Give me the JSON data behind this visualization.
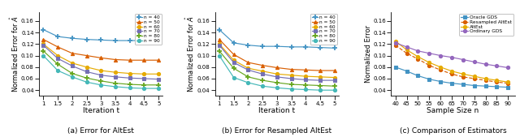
{
  "subplot1": {
    "xlabel": "Iteration t",
    "ylabel": "Normalized Error for $\\hat{A}$",
    "x": [
      1,
      1.5,
      2,
      2.5,
      3,
      3.5,
      4,
      4.5,
      5
    ],
    "series": {
      "n = 40": {
        "color": "#4393c3",
        "marker": "+",
        "values": [
          0.145,
          0.133,
          0.13,
          0.128,
          0.127,
          0.126,
          0.126,
          0.126,
          0.127
        ]
      },
      "n = 50": {
        "color": "#d95f02",
        "marker": "^",
        "values": [
          0.128,
          0.115,
          0.104,
          0.1,
          0.096,
          0.093,
          0.092,
          0.092,
          0.092
        ]
      },
      "n = 60": {
        "color": "#e6ab02",
        "marker": "o",
        "values": [
          0.12,
          0.1,
          0.087,
          0.08,
          0.074,
          0.071,
          0.069,
          0.068,
          0.068
        ]
      },
      "n = 70": {
        "color": "#7570b3",
        "marker": "s",
        "values": [
          0.118,
          0.095,
          0.082,
          0.072,
          0.066,
          0.063,
          0.061,
          0.06,
          0.059
        ]
      },
      "n = 80": {
        "color": "#66a61e",
        "marker": "+",
        "values": [
          0.108,
          0.085,
          0.069,
          0.061,
          0.056,
          0.052,
          0.05,
          0.049,
          0.049
        ]
      },
      "n = 90": {
        "color": "#45b8b8",
        "marker": "o",
        "values": [
          0.1,
          0.074,
          0.063,
          0.054,
          0.049,
          0.046,
          0.044,
          0.043,
          0.043
        ]
      }
    },
    "ylim": [
      0.03,
      0.175
    ],
    "yticks": [
      0.04,
      0.06,
      0.08,
      0.1,
      0.12,
      0.14,
      0.16
    ],
    "caption": "(a) Error for AltEst"
  },
  "subplot2": {
    "xlabel": "Iteration t",
    "ylabel": "Normalized Error for $\\hat{A}$",
    "x": [
      1,
      1.5,
      2,
      2.5,
      3,
      3.5,
      4,
      4.5,
      5
    ],
    "series": {
      "n = 40": {
        "color": "#4393c3",
        "marker": "+",
        "values": [
          0.145,
          0.122,
          0.118,
          0.116,
          0.116,
          0.115,
          0.115,
          0.114,
          0.113
        ]
      },
      "n = 50": {
        "color": "#d95f02",
        "marker": "^",
        "values": [
          0.128,
          0.102,
          0.088,
          0.083,
          0.079,
          0.076,
          0.075,
          0.074,
          0.074
        ]
      },
      "n = 60": {
        "color": "#e6ab02",
        "marker": "o",
        "values": [
          0.12,
          0.092,
          0.078,
          0.073,
          0.068,
          0.066,
          0.064,
          0.063,
          0.062
        ]
      },
      "n = 70": {
        "color": "#7570b3",
        "marker": "s",
        "values": [
          0.118,
          0.088,
          0.075,
          0.068,
          0.063,
          0.06,
          0.058,
          0.057,
          0.057
        ]
      },
      "n = 80": {
        "color": "#66a61e",
        "marker": "+",
        "values": [
          0.108,
          0.078,
          0.063,
          0.057,
          0.053,
          0.05,
          0.049,
          0.048,
          0.047
        ]
      },
      "n = 90": {
        "color": "#45b8b8",
        "marker": "o",
        "values": [
          0.1,
          0.062,
          0.053,
          0.047,
          0.044,
          0.042,
          0.041,
          0.04,
          0.04
        ]
      }
    },
    "ylim": [
      0.03,
      0.175
    ],
    "yticks": [
      0.04,
      0.06,
      0.08,
      0.1,
      0.12,
      0.14,
      0.16
    ],
    "caption": "(b) Error for Resampled AltEst"
  },
  "subplot3": {
    "xlabel": "Sample Size n",
    "ylabel": "Normalized Error",
    "x": [
      40,
      45,
      50,
      55,
      60,
      65,
      70,
      75,
      80,
      85,
      90
    ],
    "series": {
      "Oracle GDS": {
        "color": "#4393c3",
        "marker": "s",
        "linestyle": "-",
        "values": [
          0.08,
          0.073,
          0.065,
          0.059,
          0.055,
          0.052,
          0.05,
          0.048,
          0.047,
          0.046,
          0.045
        ]
      },
      "Resampled AltEst": {
        "color": "#d95f02",
        "marker": "o",
        "linestyle": "--",
        "values": [
          0.118,
          0.104,
          0.094,
          0.083,
          0.075,
          0.068,
          0.063,
          0.06,
          0.057,
          0.054,
          0.052
        ]
      },
      "AltEst": {
        "color": "#e6ab02",
        "marker": "o",
        "linestyle": "-",
        "values": [
          0.125,
          0.11,
          0.098,
          0.088,
          0.08,
          0.073,
          0.068,
          0.064,
          0.06,
          0.057,
          0.054
        ]
      },
      "Ordinary GDS": {
        "color": "#9467bd",
        "marker": "o",
        "linestyle": "-",
        "values": [
          0.122,
          0.115,
          0.108,
          0.104,
          0.1,
          0.097,
          0.093,
          0.089,
          0.085,
          0.082,
          0.079
        ]
      }
    },
    "ylim": [
      0.03,
      0.175
    ],
    "yticks": [
      0.04,
      0.06,
      0.08,
      0.1,
      0.12,
      0.14,
      0.16
    ],
    "caption": "(c) Comparison of Estimators"
  }
}
